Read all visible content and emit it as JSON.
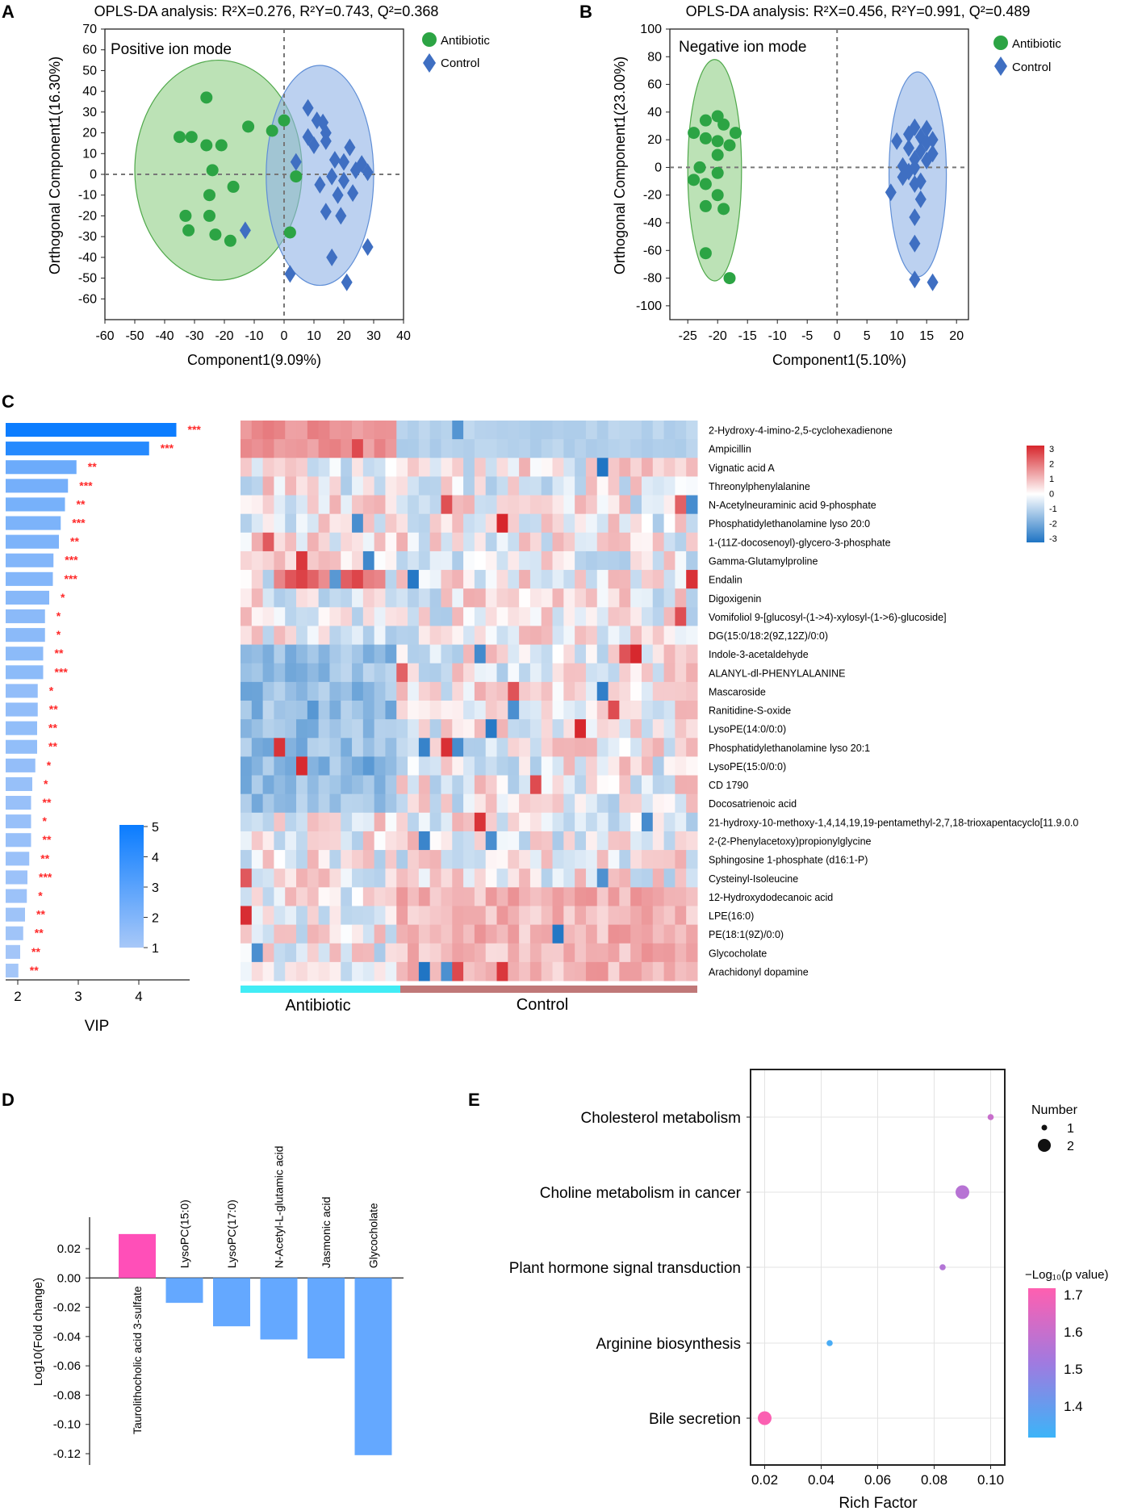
{
  "panels": {
    "A": "A",
    "B": "B",
    "C": "C",
    "D": "D",
    "E": "E"
  },
  "colors": {
    "antibiotic": "#2ca444",
    "control": "#3f6fc2",
    "ellipse_green": "#8fcf86",
    "ellipse_blue": "#8fb3e6",
    "pos_bar": "#ff4fb8",
    "neg_bar": "#64a8ff",
    "star": "#ff2a2a",
    "antibiotic_strip": "#41ecf5",
    "control_strip": "#c07878"
  },
  "chart_data": [
    {
      "id": "A",
      "type": "scatter",
      "title": "OPLS-DA analysis: R²X=0.276, R²Y=0.743, Q²=0.368",
      "mode_label": "Positive ion mode",
      "xlabel": "Component1(9.09%)",
      "ylabel": "Orthogonal Component1(16.30%)",
      "xlim": [
        -60,
        40
      ],
      "ylim": [
        -70,
        70
      ],
      "xticks": [
        -60,
        -50,
        -40,
        -30,
        -20,
        -10,
        0,
        10,
        20,
        30,
        40
      ],
      "yticks": [
        70,
        60,
        50,
        40,
        30,
        20,
        10,
        0,
        -10,
        -20,
        -30,
        -40,
        -50,
        -60
      ],
      "legend": [
        "Antibiotic",
        "Control"
      ],
      "ellipses": [
        {
          "group": "Antibiotic",
          "cx": -22,
          "cy": 2,
          "rx": 28,
          "ry": 53
        },
        {
          "group": "Control",
          "cx": 12,
          "cy": -0.5,
          "rx": 18,
          "ry": 53
        }
      ],
      "series": [
        {
          "name": "Antibiotic",
          "points": [
            [
              -26,
              37
            ],
            [
              -35,
              18
            ],
            [
              -31,
              18
            ],
            [
              -26,
              14
            ],
            [
              -21,
              14
            ],
            [
              -12,
              23
            ],
            [
              -4,
              21
            ],
            [
              0,
              26
            ],
            [
              -24,
              2
            ],
            [
              -17,
              -6
            ],
            [
              -25,
              -10
            ],
            [
              -33,
              -20
            ],
            [
              -25,
              -20
            ],
            [
              -32,
              -27
            ],
            [
              -23,
              -29
            ],
            [
              -18,
              -32
            ],
            [
              2,
              -28
            ],
            [
              4,
              -1
            ]
          ]
        },
        {
          "name": "Control",
          "points": [
            [
              8,
              32
            ],
            [
              11,
              26
            ],
            [
              13,
              25
            ],
            [
              14,
              20
            ],
            [
              8,
              18
            ],
            [
              14,
              16
            ],
            [
              10,
              14
            ],
            [
              22,
              13
            ],
            [
              4,
              6
            ],
            [
              17,
              7
            ],
            [
              20,
              6
            ],
            [
              26,
              5
            ],
            [
              24,
              2
            ],
            [
              28,
              1
            ],
            [
              16,
              -1
            ],
            [
              12,
              -5
            ],
            [
              20,
              -3
            ],
            [
              18,
              -10
            ],
            [
              23,
              -9
            ],
            [
              14,
              -18
            ],
            [
              19,
              -20
            ],
            [
              -13,
              -27
            ],
            [
              28,
              -35
            ],
            [
              16,
              -40
            ],
            [
              2,
              -48
            ],
            [
              21,
              -52
            ]
          ]
        }
      ]
    },
    {
      "id": "B",
      "type": "scatter",
      "title": "OPLS-DA analysis: R²X=0.456, R²Y=0.991, Q²=0.489",
      "mode_label": "Negative ion mode",
      "xlabel": "Component1(5.10%)",
      "ylabel": "Orthogonal Component1(23.00%)",
      "xlim": [
        -28,
        22
      ],
      "ylim": [
        -110,
        100
      ],
      "xticks": [
        -25,
        -20,
        -15,
        -10,
        -5,
        0,
        5,
        10,
        15,
        20
      ],
      "yticks": [
        100,
        80,
        60,
        40,
        20,
        0,
        -20,
        -40,
        -60,
        -80,
        -100
      ],
      "legend": [
        "Antibiotic",
        "Control"
      ],
      "ellipses": [
        {
          "group": "Antibiotic",
          "cx": -20.5,
          "cy": -2,
          "rx": 4.5,
          "ry": 80
        },
        {
          "group": "Control",
          "cx": 13.5,
          "cy": -5,
          "rx": 4.8,
          "ry": 74
        }
      ],
      "series": [
        {
          "name": "Antibiotic",
          "points": [
            [
              -20,
              37
            ],
            [
              -22,
              34
            ],
            [
              -19,
              31
            ],
            [
              -24,
              25
            ],
            [
              -17,
              25
            ],
            [
              -22,
              21
            ],
            [
              -20,
              19
            ],
            [
              -18,
              16
            ],
            [
              -20,
              9
            ],
            [
              -23,
              0
            ],
            [
              -20,
              -4
            ],
            [
              -24,
              -9
            ],
            [
              -22,
              -12
            ],
            [
              -20,
              -20
            ],
            [
              -19,
              -30
            ],
            [
              -22,
              -28
            ],
            [
              -22,
              -62
            ],
            [
              -18,
              -80
            ]
          ]
        },
        {
          "name": "Control",
          "points": [
            [
              13,
              29
            ],
            [
              15,
              28
            ],
            [
              12,
              24
            ],
            [
              14,
              22
            ],
            [
              16,
              20
            ],
            [
              10,
              19
            ],
            [
              15,
              18
            ],
            [
              12,
              14
            ],
            [
              14,
              12
            ],
            [
              16,
              10
            ],
            [
              13,
              6
            ],
            [
              15,
              5
            ],
            [
              11,
              1
            ],
            [
              13,
              0
            ],
            [
              12,
              -3
            ],
            [
              11,
              -7
            ],
            [
              14,
              -10
            ],
            [
              13,
              -12
            ],
            [
              9,
              -18
            ],
            [
              14,
              -23
            ],
            [
              13,
              -36
            ],
            [
              13,
              -55
            ],
            [
              13,
              -81
            ],
            [
              16,
              -83
            ]
          ]
        }
      ]
    },
    {
      "id": "C-vip",
      "type": "bar",
      "xlabel": "VIP",
      "xlim": [
        1.8,
        4.8
      ],
      "xticks": [
        2,
        3,
        4
      ],
      "colorbar_ticks": [
        "5",
        "4",
        "3",
        "2",
        "1"
      ],
      "categories": [
        "2-Hydroxy-4-imino-2,5-cyclohexadienone",
        "Ampicillin",
        "Vignatic acid A",
        "Threonylphenylalanine",
        "N-Acetylneuraminic acid 9-phosphate",
        "Phosphatidylethanolamine lyso 20:0",
        "1-(11Z-docosenoyl)-glycero-3-phosphate",
        "Gamma-Glutamylproline",
        "Endalin",
        "Digoxigenin",
        "Vomifoliol 9-[glucosyl-(1->4)-xylosyl-(1->6)-glucoside]",
        "DG(15:0/18:2(9Z,12Z)/0:0)",
        "Indole-3-acetaldehyde",
        "ALANYL-dl-PHENYLALANINE",
        "Mascaroside",
        "Ranitidine-S-oxide",
        "LysoPE(14:0/0:0)",
        "Phosphatidylethanolamine lyso 20:1",
        "LysoPE(15:0/0:0)",
        "CD 1790",
        "Docosatrienoic acid",
        "21-hydroxy-10-methoxy-1,4,14,19,19-pentamethyl-2,7,18-trioxapentacyclo[11.9.0.0",
        "2-(2-Phenylacetoxy)propionylglycine",
        "Sphingosine 1-phosphate (d16:1-P)",
        "Cysteinyl-Isoleucine",
        "12-Hydroxydodecanoic acid",
        "LPE(16:0)",
        "PE(18:1(9Z)/0:0)",
        "Glycocholate",
        "Arachidonyl dopamine"
      ],
      "values": [
        4.62,
        4.17,
        2.97,
        2.83,
        2.78,
        2.71,
        2.68,
        2.59,
        2.58,
        2.52,
        2.45,
        2.45,
        2.42,
        2.42,
        2.33,
        2.33,
        2.32,
        2.32,
        2.29,
        2.24,
        2.22,
        2.22,
        2.22,
        2.19,
        2.16,
        2.15,
        2.12,
        2.09,
        2.04,
        2.01
      ],
      "significance": [
        "***",
        "***",
        "**",
        "***",
        "**",
        "***",
        "**",
        "***",
        "***",
        "*",
        "*",
        "*",
        "**",
        "***",
        "*",
        "**",
        "**",
        "**",
        "*",
        "*",
        "**",
        "*",
        "**",
        "**",
        "***",
        "*",
        "**",
        "**",
        "**",
        "**"
      ]
    },
    {
      "id": "C-heatmap",
      "type": "heatmap",
      "groups": [
        "Antibiotic",
        "Control"
      ],
      "colorbar_ticks": [
        "3",
        "2",
        "1",
        "0",
        "-1",
        "-2",
        "-3"
      ],
      "range": [
        -3,
        3
      ],
      "n_antibiotic": 14,
      "n_control": 27
    },
    {
      "id": "D",
      "type": "bar",
      "ylabel": "Log10(Fold change)",
      "ylim": [
        -0.13,
        0.04
      ],
      "yticks": [
        "0.02",
        "0.00",
        "-0.02",
        "-0.04",
        "-0.06",
        "-0.08",
        "-0.10",
        "-0.12"
      ],
      "categories": [
        "Taurolithocholic acid 3-sulfate",
        "LysoPC(15:0)",
        "LysoPC(17:0)",
        "N-Acetyl-L-glutamic acid",
        "Jasmonic acid",
        "Glycocholate"
      ],
      "values": [
        0.03,
        -0.017,
        -0.033,
        -0.042,
        -0.055,
        -0.121
      ]
    },
    {
      "id": "E",
      "type": "scatter",
      "xlabel": "Rich Factor",
      "xlim": [
        0.015,
        0.105
      ],
      "xticks": [
        "0.02",
        "0.04",
        "0.06",
        "0.08",
        "0.10"
      ],
      "categories": [
        "Cholesterol metabolism",
        "Choline metabolism in cancer",
        "Plant hormone signal transduction",
        "Arginine biosynthesis",
        "Bile secretion"
      ],
      "x": [
        0.1,
        0.09,
        0.083,
        0.043,
        0.02
      ],
      "number": [
        1,
        2,
        1,
        1,
        2
      ],
      "neg_log10_p": [
        1.62,
        1.58,
        1.57,
        1.33,
        1.74
      ],
      "size_legend_title": "Number",
      "size_legend": [
        "1",
        "2"
      ],
      "color_legend_title": "−Log₁₀(p value)",
      "color_ticks": [
        "1.7",
        "1.6",
        "1.5",
        "1.4"
      ],
      "color_range": [
        1.3,
        1.75
      ]
    }
  ]
}
